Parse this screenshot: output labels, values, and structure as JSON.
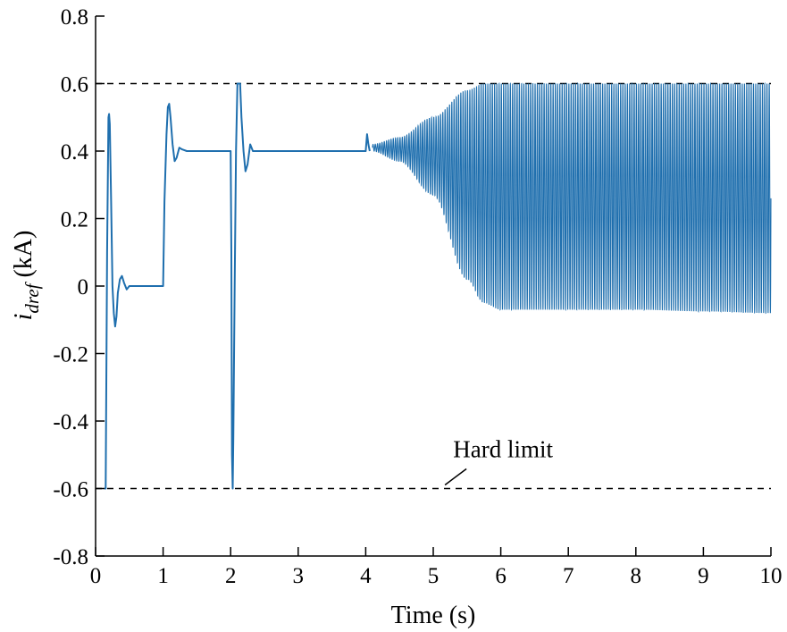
{
  "chart_data": {
    "type": "line",
    "xlabel": "Time (s)",
    "ylabel": {
      "main": "i",
      "sub": "dref",
      "unit": " (kA)"
    },
    "xlim": [
      0,
      10
    ],
    "ylim": [
      -0.8,
      0.8
    ],
    "x_ticks": [
      "0",
      "1",
      "2",
      "3",
      "4",
      "5",
      "6",
      "7",
      "8",
      "9",
      "10"
    ],
    "y_ticks": [
      "0.8",
      "0.6",
      "0.4",
      "0.2",
      "0",
      "-0.2",
      "-0.4",
      "-0.6",
      "-0.8"
    ],
    "grid": false,
    "line_color": "#1f6fae",
    "limit_color": "#000000",
    "hard_limits": [
      0.6,
      -0.6
    ],
    "annotation": {
      "text": "Hard limit",
      "x": 5.2,
      "y": -0.6
    },
    "series": [
      {
        "points": [
          [
            0.13,
            -0.6
          ],
          [
            0.15,
            -0.6
          ],
          [
            0.17,
            0.1
          ],
          [
            0.19,
            0.5
          ],
          [
            0.2,
            0.51
          ],
          [
            0.21,
            0.48
          ],
          [
            0.23,
            0.25
          ],
          [
            0.25,
            0.0
          ],
          [
            0.27,
            -0.08
          ],
          [
            0.29,
            -0.12
          ],
          [
            0.31,
            -0.09
          ],
          [
            0.33,
            -0.02
          ],
          [
            0.36,
            0.02
          ],
          [
            0.39,
            0.03
          ],
          [
            0.42,
            0.01
          ],
          [
            0.46,
            -0.01
          ],
          [
            0.5,
            0.0
          ],
          [
            0.6,
            0.0
          ],
          [
            1.0,
            0.0
          ],
          [
            1.02,
            0.25
          ],
          [
            1.05,
            0.45
          ],
          [
            1.07,
            0.53
          ],
          [
            1.09,
            0.54
          ],
          [
            1.11,
            0.5
          ],
          [
            1.14,
            0.42
          ],
          [
            1.17,
            0.37
          ],
          [
            1.2,
            0.38
          ],
          [
            1.24,
            0.41
          ],
          [
            1.28,
            0.405
          ],
          [
            1.35,
            0.4
          ],
          [
            2.0,
            0.4
          ],
          [
            2.01,
            0.1
          ],
          [
            2.02,
            -0.5
          ],
          [
            2.03,
            -0.6
          ],
          [
            2.04,
            -0.45
          ],
          [
            2.06,
            0.0
          ],
          [
            2.08,
            0.4
          ],
          [
            2.1,
            0.6
          ],
          [
            2.14,
            0.6
          ],
          [
            2.16,
            0.5
          ],
          [
            2.19,
            0.4
          ],
          [
            2.22,
            0.34
          ],
          [
            2.25,
            0.36
          ],
          [
            2.29,
            0.42
          ],
          [
            2.33,
            0.4
          ],
          [
            2.38,
            0.4
          ],
          [
            4.0,
            0.4
          ],
          [
            4.02,
            0.45
          ],
          [
            4.04,
            0.42
          ],
          [
            4.06,
            0.4
          ]
        ]
      },
      {
        "name": "",
        "envelope": {
          "x": [
            4.1,
            4.5,
            5.0,
            5.5,
            5.75,
            6.0,
            7.0,
            8.0,
            9.0,
            10.0
          ],
          "upper": [
            0.42,
            0.44,
            0.5,
            0.58,
            0.6,
            0.6,
            0.6,
            0.6,
            0.6,
            0.6
          ],
          "lower": [
            0.4,
            0.37,
            0.27,
            0.02,
            -0.05,
            -0.07,
            -0.07,
            -0.07,
            -0.075,
            -0.08
          ],
          "cycles_per_second": 30
        }
      }
    ]
  }
}
